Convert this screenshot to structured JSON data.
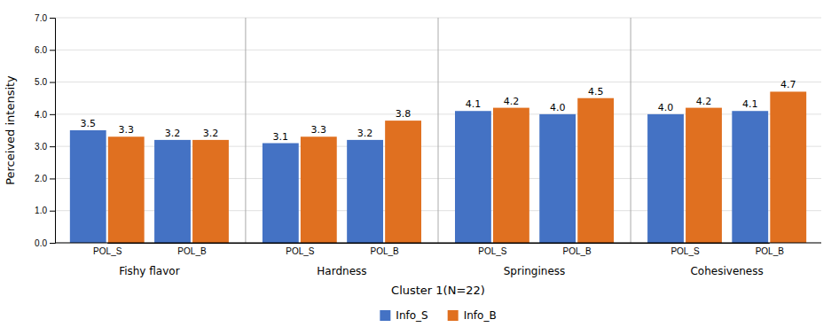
{
  "chart_data": {
    "type": "bar",
    "categories": [
      "POL_S",
      "POL_B",
      "POL_S",
      "POL_B",
      "POL_S",
      "POL_B",
      "POL_S",
      "POL_B"
    ],
    "groups": [
      "Fishy flavor",
      "Hardness",
      "Springiness",
      "Cohesiveness"
    ],
    "series": [
      {
        "name": "Info_S",
        "color": "#4472C4",
        "values": [
          3.5,
          3.2,
          3.1,
          3.2,
          4.1,
          4.0,
          4.0,
          4.1
        ],
        "value_labels": [
          "3.5",
          "3.2",
          "3.1",
          "3.2",
          "4.1",
          "4.0",
          "4.0",
          "4.1"
        ]
      },
      {
        "name": "Info_B",
        "color": "#E07020",
        "values": [
          3.3,
          3.2,
          3.3,
          3.8,
          4.2,
          4.5,
          4.2,
          4.7
        ],
        "value_labels": [
          "3.3",
          "3.2",
          "3.3",
          "3.8",
          "4.2",
          "4.5",
          "4.2",
          "4.7"
        ]
      }
    ],
    "xlabel": "Cluster 1(N=22)",
    "ylabel": "Perceived intensity",
    "ylim": [
      0,
      7.0
    ],
    "yticks": [
      {
        "value": 0,
        "label": "0.0"
      },
      {
        "value": 1,
        "label": "1.0"
      },
      {
        "value": 2,
        "label": "2.0"
      },
      {
        "value": 3,
        "label": "3.0"
      },
      {
        "value": 4,
        "label": "4.0"
      },
      {
        "value": 5,
        "label": "5.0"
      },
      {
        "value": 6,
        "label": "6.0"
      },
      {
        "value": 7,
        "label": "7.0"
      }
    ],
    "grid": true,
    "data_labels": true,
    "legend": "bottom"
  }
}
